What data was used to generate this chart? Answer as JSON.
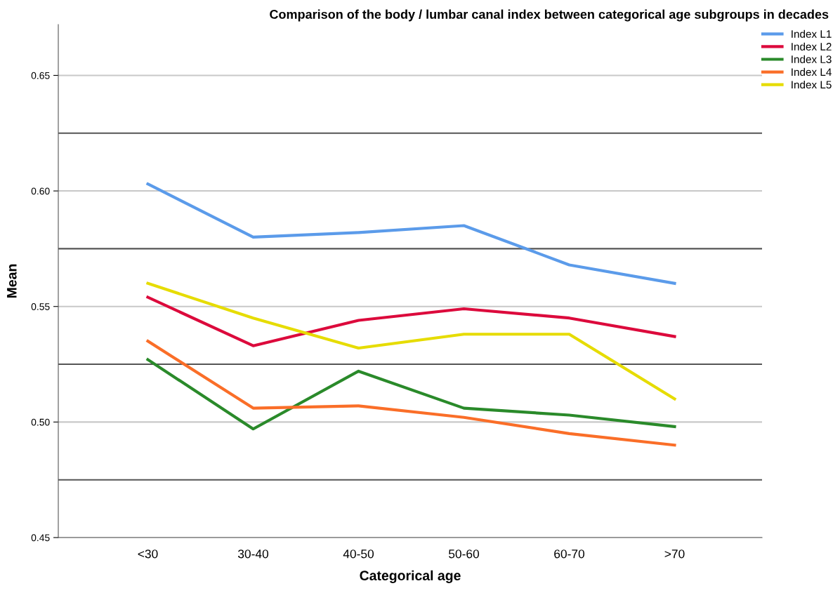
{
  "chart_data": {
    "type": "line",
    "title": "Comparison of the body / lumbar canal index between categorical age subgroups in decades",
    "xlabel": "Categorical age",
    "ylabel": "Mean",
    "categories": [
      "<30",
      "30-40",
      "40-50",
      "50-60",
      "60-70",
      ">70"
    ],
    "series": [
      {
        "name": "Index L1",
        "color": "#5b9bea",
        "values": [
          0.603,
          0.58,
          0.582,
          0.585,
          0.568,
          0.56
        ]
      },
      {
        "name": "Index L2",
        "color": "#dc0a3c",
        "values": [
          0.554,
          0.533,
          0.544,
          0.549,
          0.545,
          0.537
        ]
      },
      {
        "name": "Index L3",
        "color": "#2a8a2a",
        "values": [
          0.527,
          0.497,
          0.522,
          0.506,
          0.503,
          0.498
        ]
      },
      {
        "name": "Index L4",
        "color": "#fa6e28",
        "values": [
          0.535,
          0.506,
          0.507,
          0.502,
          0.495,
          0.49
        ]
      },
      {
        "name": "Index L5",
        "color": "#e6dc00",
        "values": [
          0.56,
          0.545,
          0.532,
          0.538,
          0.538,
          0.51
        ]
      }
    ],
    "ylim": [
      0.45,
      0.672
    ],
    "yticks": [
      {
        "value": 0.45,
        "label": "0.45"
      },
      {
        "value": 0.5,
        "label": "0.50"
      },
      {
        "value": 0.55,
        "label": "0.55"
      },
      {
        "value": 0.6,
        "label": "0.60"
      },
      {
        "value": 0.65,
        "label": "0.65"
      }
    ],
    "ref_lines": [
      {
        "axis": "y",
        "value": 0.475,
        "color": "#555555"
      },
      {
        "axis": "y",
        "value": 0.525,
        "color": "#555555"
      },
      {
        "axis": "y",
        "value": 0.575,
        "color": "#555555"
      },
      {
        "axis": "y",
        "value": 0.625,
        "color": "#555555"
      }
    ],
    "grid": "y",
    "legend": "top right",
    "marker": "none",
    "line_style": "solid"
  }
}
